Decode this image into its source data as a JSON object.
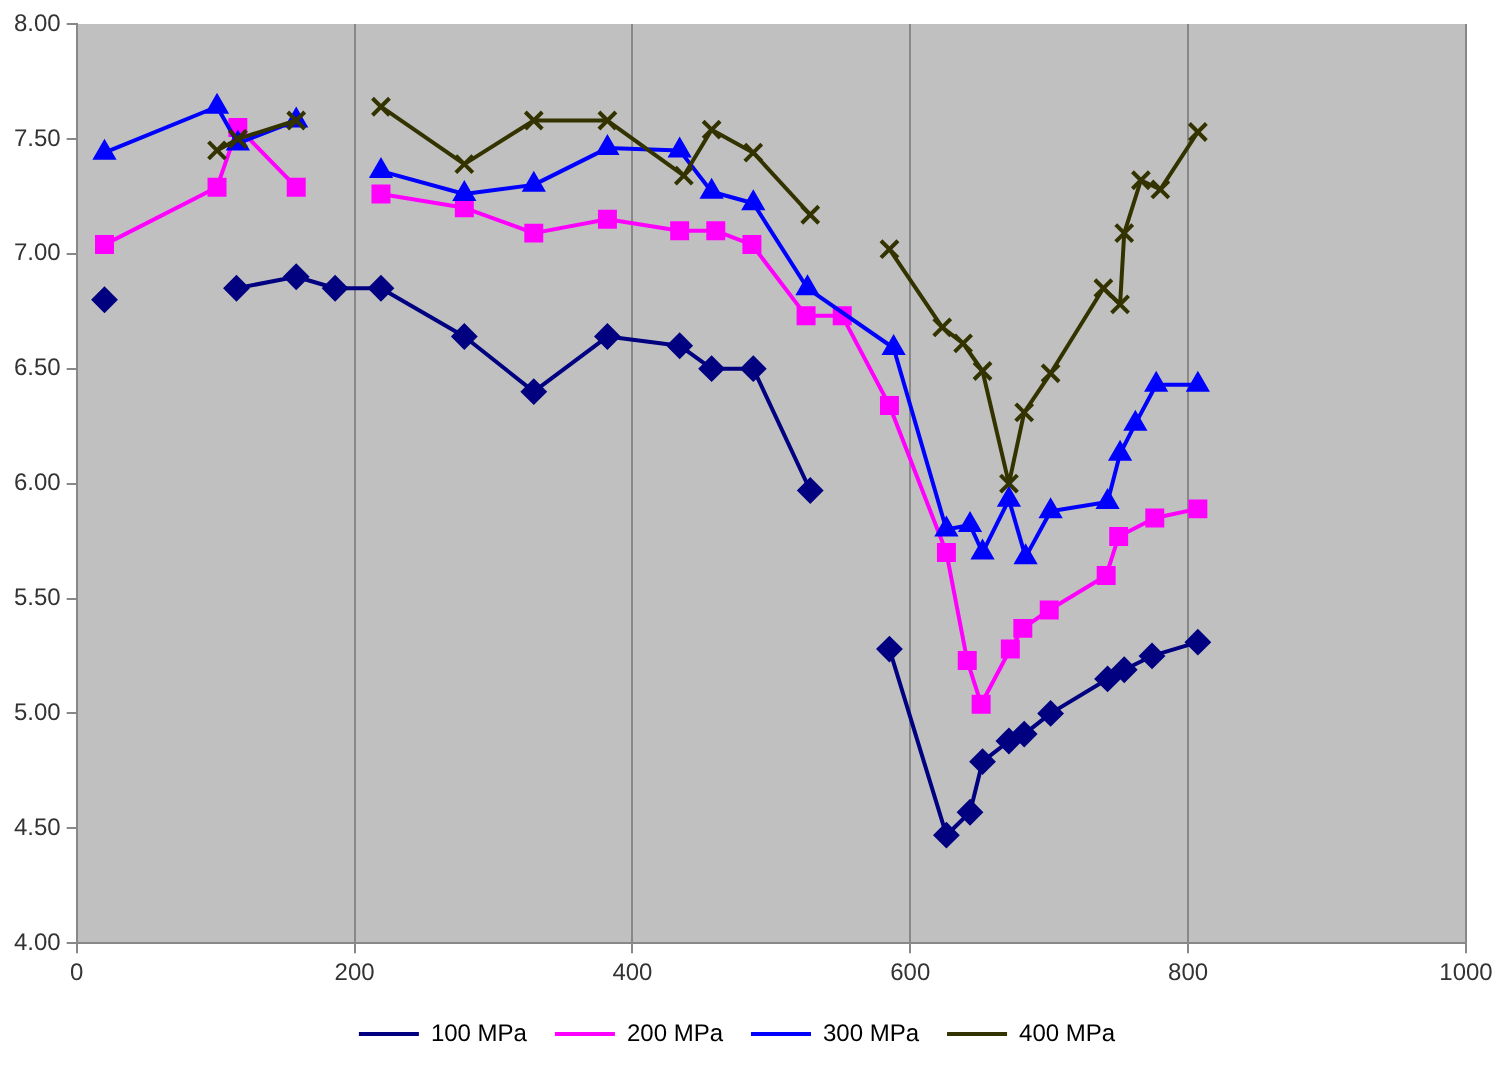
{
  "chart_data": {
    "type": "line",
    "xlim": [
      0,
      1000
    ],
    "xticks": [
      0,
      200,
      400,
      600,
      800,
      1000
    ],
    "ylim": [
      4,
      8
    ],
    "yticks": [
      {
        "value": 4,
        "label": "4.00"
      },
      {
        "value": 4.5,
        "label": "4.50"
      },
      {
        "value": 5,
        "label": "5.00"
      },
      {
        "value": 5.5,
        "label": "5.50"
      },
      {
        "value": 6,
        "label": "6.00"
      },
      {
        "value": 6.5,
        "label": "6.50"
      },
      {
        "value": 7,
        "label": "7.00"
      },
      {
        "value": 7.5,
        "label": "7.50"
      },
      {
        "value": 8,
        "label": "8.00"
      }
    ],
    "grid": "x",
    "legend": "bottom",
    "line_style": "solid",
    "series": [
      {
        "name": "100 MPa",
        "color": "#000080",
        "marker": "diamond",
        "x": [
          20,
          70,
          115,
          158,
          186,
          219,
          279,
          329,
          382,
          434,
          457,
          487,
          528,
          556,
          585,
          626,
          643,
          652,
          671,
          682,
          701,
          742,
          754,
          774,
          807
        ],
        "values": [
          6.8,
          null,
          6.85,
          6.9,
          6.85,
          6.85,
          6.64,
          6.4,
          6.64,
          6.6,
          6.5,
          6.5,
          5.97,
          null,
          5.28,
          4.47,
          4.57,
          4.79,
          4.88,
          4.91,
          5.0,
          5.15,
          5.19,
          5.25,
          5.31
        ]
      },
      {
        "name": "200 MPa",
        "color": "#ff00ff",
        "marker": "square",
        "x": [
          20,
          101,
          116,
          158,
          188,
          219,
          279,
          329,
          382,
          434,
          460,
          486,
          525,
          551,
          585,
          626,
          641,
          651,
          672,
          681,
          700,
          741,
          750,
          776,
          807
        ],
        "values": [
          7.04,
          7.29,
          7.55,
          7.29,
          null,
          7.26,
          7.2,
          7.09,
          7.15,
          7.1,
          7.1,
          7.04,
          6.73,
          6.73,
          6.34,
          5.7,
          5.23,
          5.04,
          5.28,
          5.37,
          5.45,
          5.6,
          5.77,
          5.85,
          5.89
        ]
      },
      {
        "name": "300 MPa",
        "color": "#0000ff",
        "marker": "triangle",
        "x": [
          20,
          101,
          116,
          158,
          188,
          219,
          279,
          329,
          382,
          434,
          457,
          487,
          526,
          588,
          626,
          643,
          652,
          671,
          683,
          701,
          742,
          751,
          762,
          777,
          807
        ],
        "values": [
          7.44,
          7.64,
          7.48,
          7.58,
          null,
          7.36,
          7.26,
          7.3,
          7.46,
          7.45,
          7.27,
          7.22,
          6.85,
          6.59,
          5.8,
          5.82,
          5.7,
          5.93,
          5.68,
          5.88,
          5.92,
          6.13,
          6.26,
          6.43,
          6.43
        ]
      },
      {
        "name": "400 MPa",
        "color": "#333300",
        "marker": "cross",
        "x": [
          101,
          116,
          158,
          188,
          219,
          279,
          329,
          382,
          437,
          457,
          487,
          528,
          556,
          585,
          623,
          638,
          652,
          671,
          682,
          701,
          739,
          751,
          754,
          766,
          780,
          807
        ],
        "values": [
          7.45,
          7.5,
          7.58,
          null,
          7.64,
          7.39,
          7.58,
          7.58,
          7.34,
          7.54,
          7.44,
          7.17,
          null,
          7.02,
          6.68,
          6.61,
          6.49,
          6.0,
          6.31,
          6.48,
          6.85,
          6.78,
          7.09,
          7.32,
          7.28,
          7.53
        ]
      }
    ]
  }
}
